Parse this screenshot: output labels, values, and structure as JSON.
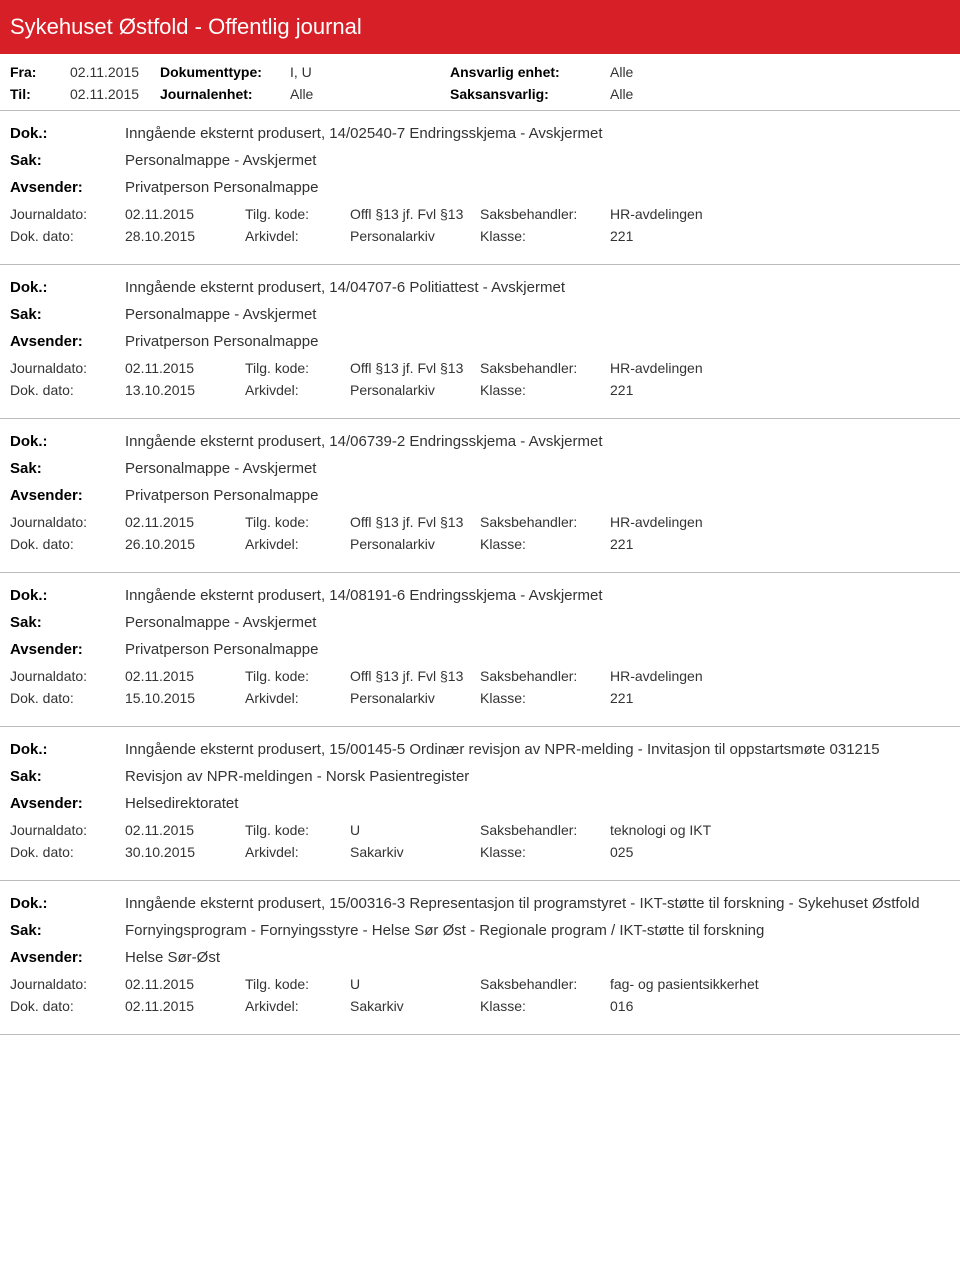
{
  "colors": {
    "headerBg": "#d61f26",
    "headerText": "#ffffff",
    "border": "#bbbbbb"
  },
  "header": {
    "title": "Sykehuset Østfold - Offentlig journal"
  },
  "filter": {
    "fra_label": "Fra:",
    "fra_value": "02.11.2015",
    "til_label": "Til:",
    "til_value": "02.11.2015",
    "doktype_label": "Dokumenttype:",
    "doktype_value": "I, U",
    "journalenhet_label": "Journalenhet:",
    "journalenhet_value": "Alle",
    "ansvarlig_label": "Ansvarlig enhet:",
    "ansvarlig_value": "Alle",
    "saksansvarlig_label": "Saksansvarlig:",
    "saksansvarlig_value": "Alle"
  },
  "labels": {
    "dok": "Dok.:",
    "sak": "Sak:",
    "avsender": "Avsender:",
    "journaldato": "Journaldato:",
    "dokdato": "Dok. dato:",
    "tilgkode": "Tilg. kode:",
    "arkivdel": "Arkivdel:",
    "saksbehandler": "Saksbehandler:",
    "klasse": "Klasse:"
  },
  "entries": [
    {
      "dok": "Inngående eksternt produsert, 14/02540-7 Endringsskjema - Avskjermet",
      "sak": "Personalmappe - Avskjermet",
      "avsender": "Privatperson Personalmappe",
      "journaldato": "02.11.2015",
      "dokdato": "28.10.2015",
      "tilgkode": "Offl §13 jf. Fvl §13",
      "arkivdel": "Personalarkiv",
      "saksbehandler": "HR-avdelingen",
      "klasse": "221"
    },
    {
      "dok": "Inngående eksternt produsert, 14/04707-6 Politiattest - Avskjermet",
      "sak": "Personalmappe - Avskjermet",
      "avsender": "Privatperson Personalmappe",
      "journaldato": "02.11.2015",
      "dokdato": "13.10.2015",
      "tilgkode": "Offl §13 jf. Fvl §13",
      "arkivdel": "Personalarkiv",
      "saksbehandler": "HR-avdelingen",
      "klasse": "221"
    },
    {
      "dok": "Inngående eksternt produsert, 14/06739-2 Endringsskjema - Avskjermet",
      "sak": "Personalmappe - Avskjermet",
      "avsender": "Privatperson Personalmappe",
      "journaldato": "02.11.2015",
      "dokdato": "26.10.2015",
      "tilgkode": "Offl §13 jf. Fvl §13",
      "arkivdel": "Personalarkiv",
      "saksbehandler": "HR-avdelingen",
      "klasse": "221"
    },
    {
      "dok": "Inngående eksternt produsert, 14/08191-6 Endringsskjema - Avskjermet",
      "sak": "Personalmappe - Avskjermet",
      "avsender": "Privatperson Personalmappe",
      "journaldato": "02.11.2015",
      "dokdato": "15.10.2015",
      "tilgkode": "Offl §13 jf. Fvl §13",
      "arkivdel": "Personalarkiv",
      "saksbehandler": "HR-avdelingen",
      "klasse": "221"
    },
    {
      "dok": "Inngående eksternt produsert, 15/00145-5 Ordinær revisjon av NPR-melding - Invitasjon til oppstartsmøte 031215",
      "sak": "Revisjon av NPR-meldingen - Norsk Pasientregister",
      "avsender": "Helsedirektoratet",
      "journaldato": "02.11.2015",
      "dokdato": "30.10.2015",
      "tilgkode": "U",
      "arkivdel": "Sakarkiv",
      "saksbehandler": "teknologi og IKT",
      "klasse": "025"
    },
    {
      "dok": "Inngående eksternt produsert, 15/00316-3 Representasjon til programstyret - IKT-støtte til forskning - Sykehuset Østfold",
      "sak": "Fornyingsprogram - Fornyingsstyre - Helse Sør Øst - Regionale program / IKT-støtte til forskning",
      "avsender": "Helse Sør-Øst",
      "journaldato": "02.11.2015",
      "dokdato": "02.11.2015",
      "tilgkode": "U",
      "arkivdel": "Sakarkiv",
      "saksbehandler": "fag- og pasientsikkerhet",
      "klasse": "016"
    }
  ]
}
